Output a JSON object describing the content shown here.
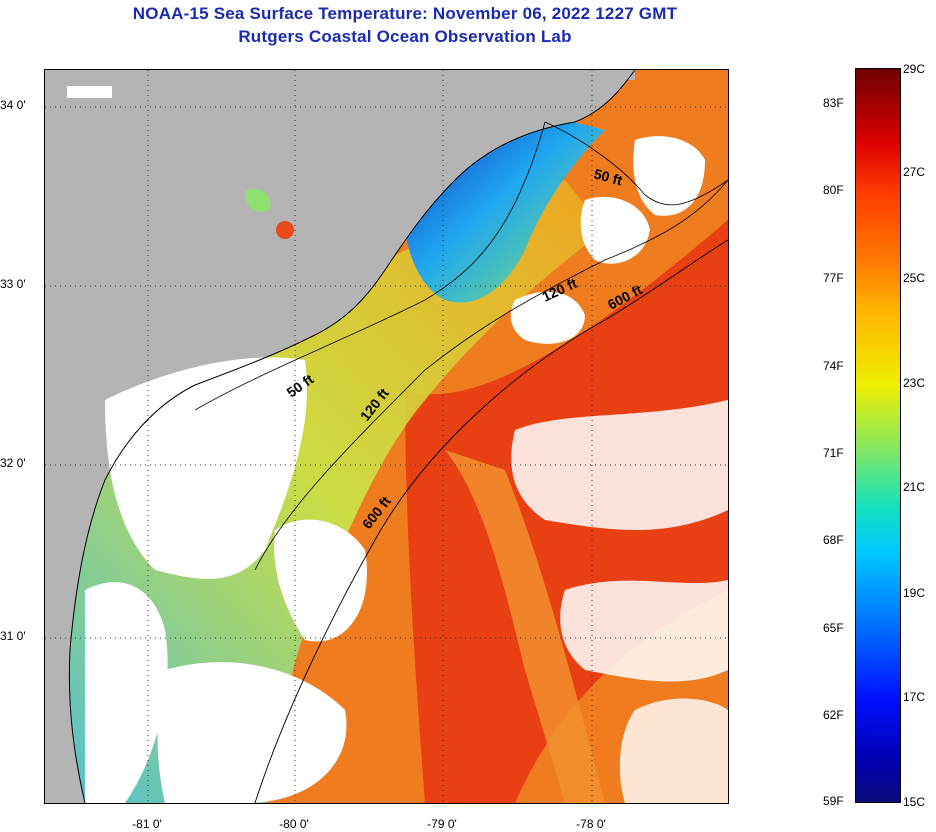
{
  "title": {
    "line1": "NOAA-15 Sea Surface Temperature:  November 06, 2022 1227 GMT",
    "line2": "Rutgers Coastal Ocean Observation Lab"
  },
  "map": {
    "lat_labels": [
      "34 0'",
      "33 0'",
      "32 0'",
      "31 0'"
    ],
    "lon_labels": [
      "-81 0'",
      "-80 0'",
      "-79 0'",
      "-78 0'"
    ],
    "contour_labels": [
      "50 ft",
      "120 ft",
      "600 ft",
      "50 ft",
      "120 ft",
      "600 ft"
    ],
    "colors": {
      "land": "#b4b4b4",
      "cloud": "#ffffff",
      "cold": "#0818a8",
      "cool": "#28c8f0",
      "mild": "#d8e840",
      "warm": "#f08c18",
      "hot": "#e82810"
    }
  },
  "colorbar": {
    "fahrenheit": [
      "83F",
      "80F",
      "77F",
      "74F",
      "71F",
      "68F",
      "65F",
      "62F",
      "59F"
    ],
    "celsius": [
      "29C",
      "27C",
      "25C",
      "23C",
      "21C",
      "19C",
      "17C",
      "15C"
    ]
  }
}
